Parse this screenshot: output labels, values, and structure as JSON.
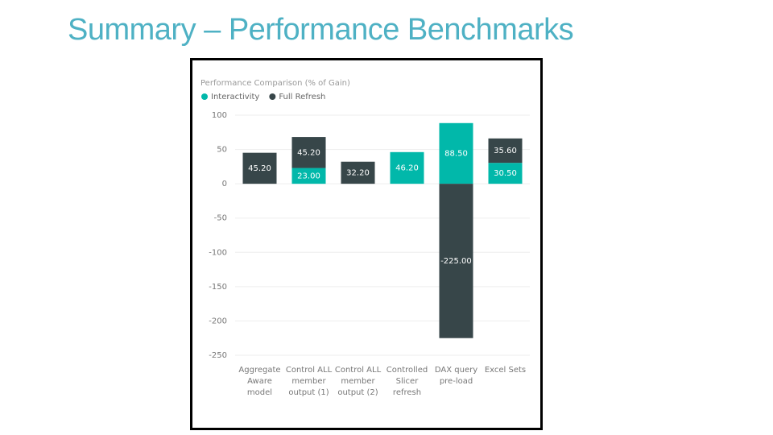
{
  "slide_title": "Summary – Performance Benchmarks",
  "chart_data": {
    "type": "stacked_bar",
    "title": "Performance Comparison (% of Gain)",
    "categories": [
      "Aggregate Aware model",
      "Control ALL member output (1)",
      "Control ALL member output (2)",
      "Controlled Slicer refresh",
      "DAX query pre-load",
      "Excel Sets"
    ],
    "series": [
      {
        "name": "Interactivity",
        "color": "#01b8aa",
        "values": [
          null,
          23,
          null,
          46.2,
          88.5,
          30.5
        ],
        "value_labels": [
          null,
          "23.00",
          null,
          "46.20",
          "88.50",
          "30.50"
        ]
      },
      {
        "name": "Full Refresh",
        "color": "#374649",
        "values": [
          45.2,
          45.2,
          32.2,
          null,
          -225,
          35.6
        ],
        "value_labels": [
          "45.20",
          "45.20",
          "32.20",
          null,
          "-225.00",
          "35.60"
        ]
      }
    ],
    "ylim": [
      -250,
      100
    ],
    "yticks": [
      100,
      50,
      0,
      -50,
      -100,
      -150,
      -200,
      -250
    ],
    "grid": true,
    "legend": "top-left"
  }
}
